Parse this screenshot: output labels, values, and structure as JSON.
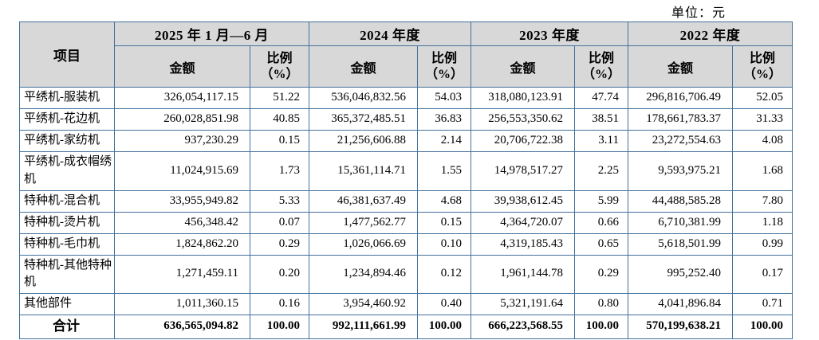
{
  "unit_label": "单位：元",
  "colors": {
    "border": "#41719c",
    "header_bg": "#d8d8d8",
    "text": "#000000"
  },
  "table": {
    "header": {
      "item_col": "项目",
      "periods": [
        "2025 年 1 月—6 月",
        "2024 年度",
        "2023 年度",
        "2022 年度"
      ],
      "amount": "金额",
      "ratio_line1": "比例",
      "ratio_line2": "（%）"
    },
    "rows": [
      {
        "item": "平绣机-服装机",
        "values": [
          "326,054,117.15",
          "51.22",
          "536,046,832.56",
          "54.03",
          "318,080,123.91",
          "47.74",
          "296,816,706.49",
          "52.05"
        ]
      },
      {
        "item": "平绣机-花边机",
        "values": [
          "260,028,851.98",
          "40.85",
          "365,372,485.51",
          "36.83",
          "256,553,350.62",
          "38.51",
          "178,661,783.37",
          "31.33"
        ]
      },
      {
        "item": "平绣机-家纺机",
        "values": [
          "937,230.29",
          "0.15",
          "21,256,606.88",
          "2.14",
          "20,706,722.38",
          "3.11",
          "23,272,554.63",
          "4.08"
        ]
      },
      {
        "item": "平绣机-成衣帽绣机",
        "values": [
          "11,024,915.69",
          "1.73",
          "15,361,114.71",
          "1.55",
          "14,978,517.27",
          "2.25",
          "9,593,975.21",
          "1.68"
        ]
      },
      {
        "item": "特种机-混合机",
        "values": [
          "33,955,949.82",
          "5.33",
          "46,381,637.49",
          "4.68",
          "39,938,612.45",
          "5.99",
          "44,488,585.28",
          "7.80"
        ]
      },
      {
        "item": "特种机-烫片机",
        "values": [
          "456,348.42",
          "0.07",
          "1,477,562.77",
          "0.15",
          "4,364,720.07",
          "0.66",
          "6,710,381.99",
          "1.18"
        ]
      },
      {
        "item": "特种机-毛巾机",
        "values": [
          "1,824,862.20",
          "0.29",
          "1,026,066.69",
          "0.10",
          "4,319,185.43",
          "0.65",
          "5,618,501.99",
          "0.99"
        ]
      },
      {
        "item": "特种机-其他特种机",
        "values": [
          "1,271,459.11",
          "0.20",
          "1,234,894.46",
          "0.12",
          "1,961,144.78",
          "0.29",
          "995,252.40",
          "0.17"
        ]
      },
      {
        "item": "其他部件",
        "values": [
          "1,011,360.15",
          "0.16",
          "3,954,460.92",
          "0.40",
          "5,321,191.64",
          "0.80",
          "4,041,896.84",
          "0.71"
        ]
      }
    ],
    "total": {
      "item": "合计",
      "values": [
        "636,565,094.82",
        "100.00",
        "992,111,661.99",
        "100.00",
        "666,223,568.55",
        "100.00",
        "570,199,638.21",
        "100.00"
      ]
    }
  }
}
